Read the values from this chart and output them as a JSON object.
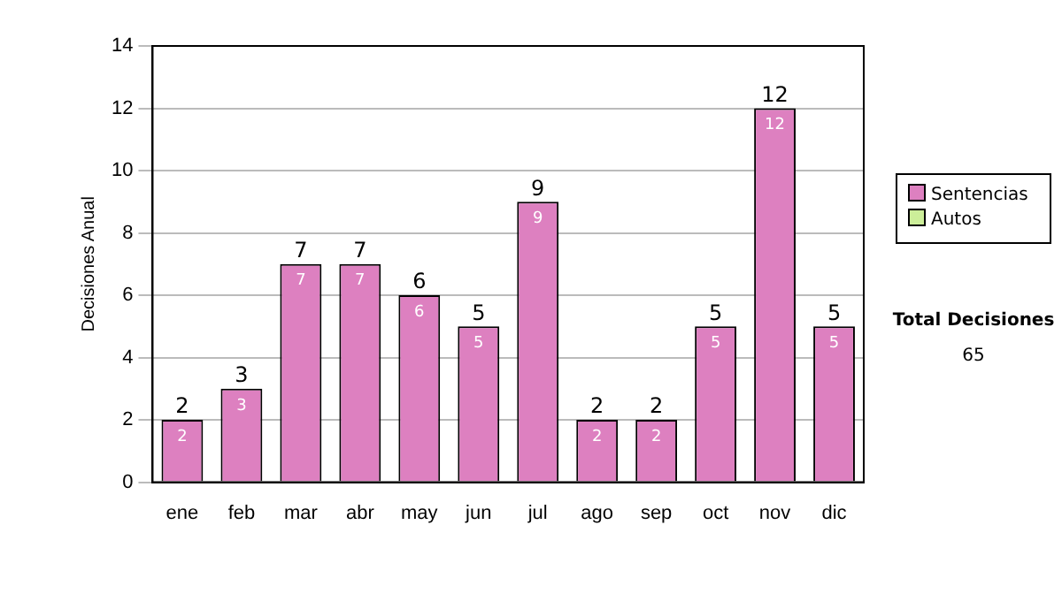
{
  "chart_data": {
    "type": "bar",
    "ylabel": "Decisiones Anual",
    "categories": [
      "ene",
      "feb",
      "mar",
      "abr",
      "may",
      "jun",
      "jul",
      "ago",
      "sep",
      "oct",
      "nov",
      "dic"
    ],
    "series": [
      {
        "name": "Sentencias",
        "color": "#dd80c0",
        "values": [
          2,
          3,
          7,
          7,
          6,
          5,
          9,
          2,
          2,
          5,
          12,
          5
        ]
      },
      {
        "name": "Autos",
        "color": "#ccee99",
        "values": [
          null,
          null,
          null,
          null,
          null,
          null,
          null,
          null,
          null,
          null,
          null,
          null
        ]
      }
    ],
    "stacked": true,
    "totals": [
      "2",
      "3",
      "7",
      "7",
      "6",
      "5",
      "9",
      "2",
      "2",
      "5",
      "12",
      "5"
    ],
    "ylim": [
      0,
      14
    ],
    "yticks": [
      0,
      2,
      4,
      6,
      8,
      10,
      12,
      14
    ],
    "grid": "y",
    "legend": "right",
    "data_labels": true,
    "annotations": [
      "Total Decisiones",
      "65"
    ]
  }
}
